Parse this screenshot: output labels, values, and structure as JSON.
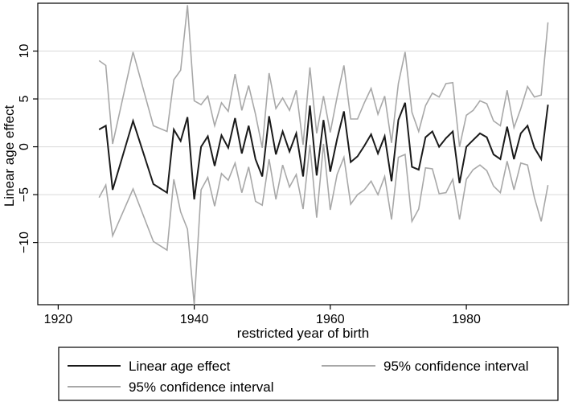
{
  "chart_data": {
    "type": "line",
    "title": "",
    "xlabel": "restricted year of birth",
    "ylabel": "Linear age effect",
    "xlim": [
      1917,
      1995
    ],
    "ylim": [
      -16.5,
      15
    ],
    "xticks": [
      1920,
      1940,
      1960,
      1980
    ],
    "yticks": [
      10,
      5,
      0,
      -5,
      -10
    ],
    "grid": "horizontal",
    "legend": {
      "position": "bottom",
      "entries": [
        "Linear age effect",
        "95% confidence interval",
        "95% confidence interval"
      ]
    },
    "x": [
      1926,
      1927,
      1928,
      1931,
      1934,
      1936,
      1937,
      1938,
      1939,
      1940,
      1941,
      1942,
      1943,
      1944,
      1945,
      1946,
      1947,
      1948,
      1949,
      1950,
      1951,
      1952,
      1953,
      1954,
      1955,
      1956,
      1957,
      1958,
      1959,
      1960,
      1961,
      1962,
      1963,
      1964,
      1965,
      1966,
      1967,
      1968,
      1969,
      1970,
      1971,
      1972,
      1973,
      1974,
      1975,
      1976,
      1977,
      1978,
      1979,
      1980,
      1981,
      1982,
      1983,
      1984,
      1985,
      1986,
      1987,
      1988,
      1989,
      1990,
      1991,
      1992
    ],
    "series": [
      {
        "name": "Linear age effect",
        "color": "#1a1a1a",
        "values": [
          1.8,
          2.2,
          -4.5,
          2.7,
          -3.9,
          -4.8,
          1.8,
          0.6,
          3.1,
          -5.5,
          0.0,
          1.1,
          -2.0,
          1.2,
          -0.1,
          3.0,
          -0.7,
          2.2,
          -1.3,
          -3.1,
          3.2,
          -0.8,
          1.6,
          -0.5,
          1.4,
          -3.1,
          4.3,
          -3.0,
          2.8,
          -2.6,
          0.8,
          3.7,
          -1.6,
          -1.0,
          0.1,
          1.3,
          -0.7,
          1.1,
          -3.6,
          2.8,
          4.6,
          -2.1,
          -2.4,
          1.0,
          1.6,
          0.0,
          0.9,
          1.6,
          -3.8,
          0.0,
          0.7,
          1.4,
          1.0,
          -0.8,
          -1.3,
          2.1,
          -1.3,
          1.4,
          2.2,
          -0.1,
          -1.3,
          4.4
        ]
      },
      {
        "name": "95% confidence interval",
        "color": "#a8a8a8",
        "values": [
          9.0,
          8.5,
          0.3,
          9.9,
          2.2,
          1.6,
          7.0,
          8.0,
          14.8,
          4.8,
          4.4,
          5.3,
          2.2,
          4.6,
          3.7,
          7.6,
          3.8,
          6.4,
          3.4,
          -0.1,
          7.7,
          4.0,
          5.1,
          3.8,
          5.9,
          0.2,
          8.3,
          1.4,
          5.3,
          1.5,
          5.2,
          8.5,
          2.9,
          2.9,
          4.6,
          6.1,
          3.4,
          5.3,
          0.4,
          6.6,
          9.9,
          3.6,
          1.6,
          4.3,
          5.6,
          5.2,
          6.6,
          6.7,
          0.0,
          3.3,
          3.8,
          4.8,
          4.5,
          2.7,
          2.2,
          5.9,
          2.0,
          4.0,
          6.3,
          5.2,
          5.4,
          13.0
        ]
      },
      {
        "name": "95% confidence interval",
        "color": "#a8a8a8",
        "values": [
          -5.3,
          -4.0,
          -9.3,
          -4.4,
          -9.9,
          -10.8,
          -3.4,
          -6.8,
          -8.6,
          -16.5,
          -4.5,
          -3.2,
          -6.2,
          -2.8,
          -3.5,
          -1.7,
          -4.8,
          -2.1,
          -5.7,
          -6.1,
          -1.3,
          -5.5,
          -1.9,
          -4.2,
          -2.9,
          -6.5,
          0.2,
          -7.4,
          0.3,
          -6.6,
          -2.9,
          -1.1,
          -6.0,
          -5.0,
          -4.5,
          -3.6,
          -5.0,
          -3.1,
          -7.6,
          -1.1,
          -0.8,
          -7.8,
          -6.5,
          -2.2,
          -2.3,
          -4.9,
          -4.8,
          -3.4,
          -7.6,
          -3.4,
          -2.4,
          -1.9,
          -2.5,
          -4.1,
          -4.8,
          -1.5,
          -4.5,
          -1.7,
          -1.9,
          -5.3,
          -7.8,
          -4.0
        ]
      }
    ]
  }
}
